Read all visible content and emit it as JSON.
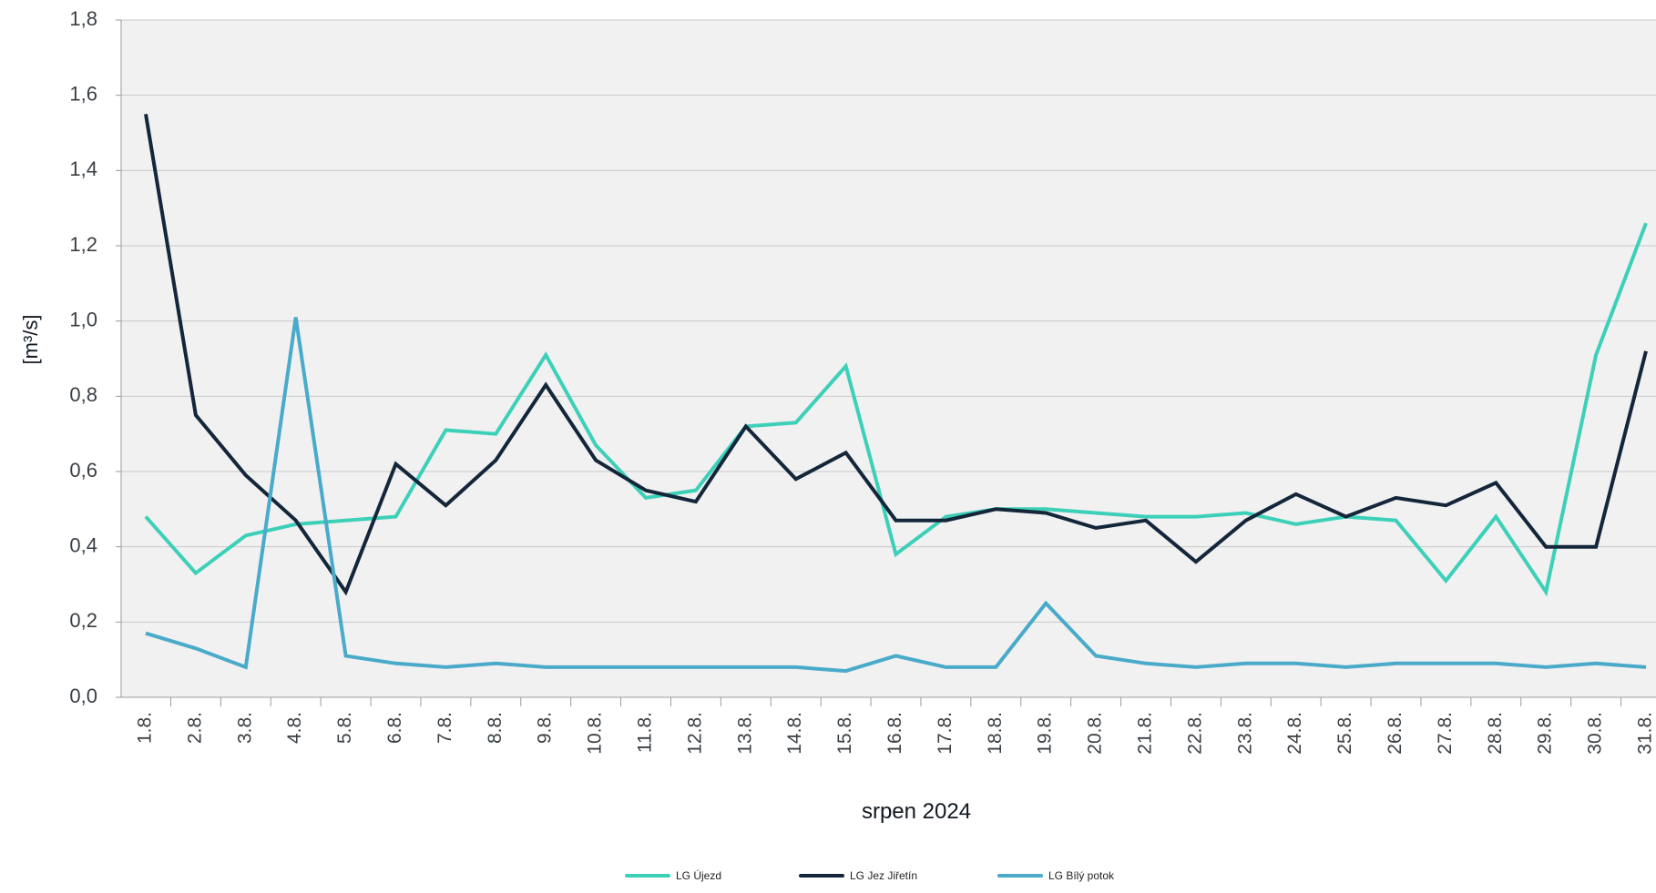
{
  "chart_data": {
    "type": "line",
    "title": "",
    "xlabel": "srpen 2024",
    "ylabel": "[m³/s]",
    "ylim": [
      0,
      1.8
    ],
    "yticks": [
      "0,0",
      "0,2",
      "0,4",
      "0,6",
      "0,8",
      "1,0",
      "1,2",
      "1,4",
      "1,6",
      "1,8"
    ],
    "grid": true,
    "legend_position": "bottom",
    "categories": [
      "1.8.",
      "2.8.",
      "3.8.",
      "4.8.",
      "5.8.",
      "6.8.",
      "7.8.",
      "8.8.",
      "9.8.",
      "10.8.",
      "11.8.",
      "12.8.",
      "13.8.",
      "14.8.",
      "15.8.",
      "16.8.",
      "17.8.",
      "18.8.",
      "19.8.",
      "20.8.",
      "21.8.",
      "22.8.",
      "23.8.",
      "24.8.",
      "25.8.",
      "26.8.",
      "27.8.",
      "28.8.",
      "29.8.",
      "30.8.",
      "31.8."
    ],
    "series": [
      {
        "name": "LG Újezd",
        "color": "#3dd0b9",
        "values": [
          0.48,
          0.33,
          0.43,
          0.46,
          0.47,
          0.48,
          0.71,
          0.7,
          0.91,
          0.67,
          0.53,
          0.55,
          0.72,
          0.73,
          0.88,
          0.38,
          0.48,
          0.5,
          0.5,
          0.49,
          0.48,
          0.48,
          0.49,
          0.46,
          0.48,
          0.47,
          0.31,
          0.48,
          0.28,
          0.91,
          1.26
        ]
      },
      {
        "name": "LG Jez Jiřetín",
        "color": "#13263a",
        "values": [
          1.55,
          0.75,
          0.59,
          0.47,
          0.28,
          0.62,
          0.51,
          0.63,
          0.83,
          0.63,
          0.55,
          0.52,
          0.72,
          0.58,
          0.65,
          0.47,
          0.47,
          0.5,
          0.49,
          0.45,
          0.47,
          0.36,
          0.47,
          0.54,
          0.48,
          0.53,
          0.51,
          0.57,
          0.4,
          0.4,
          0.92
        ]
      },
      {
        "name": "LG Bílý potok",
        "color": "#4aaac9",
        "values": [
          0.17,
          0.13,
          0.08,
          1.01,
          0.11,
          0.09,
          0.08,
          0.09,
          0.08,
          0.08,
          0.08,
          0.08,
          0.08,
          0.08,
          0.07,
          0.11,
          0.08,
          0.08,
          0.25,
          0.11,
          0.09,
          0.08,
          0.09,
          0.09,
          0.08,
          0.09,
          0.09,
          0.09,
          0.08,
          0.09,
          0.08
        ]
      }
    ]
  }
}
